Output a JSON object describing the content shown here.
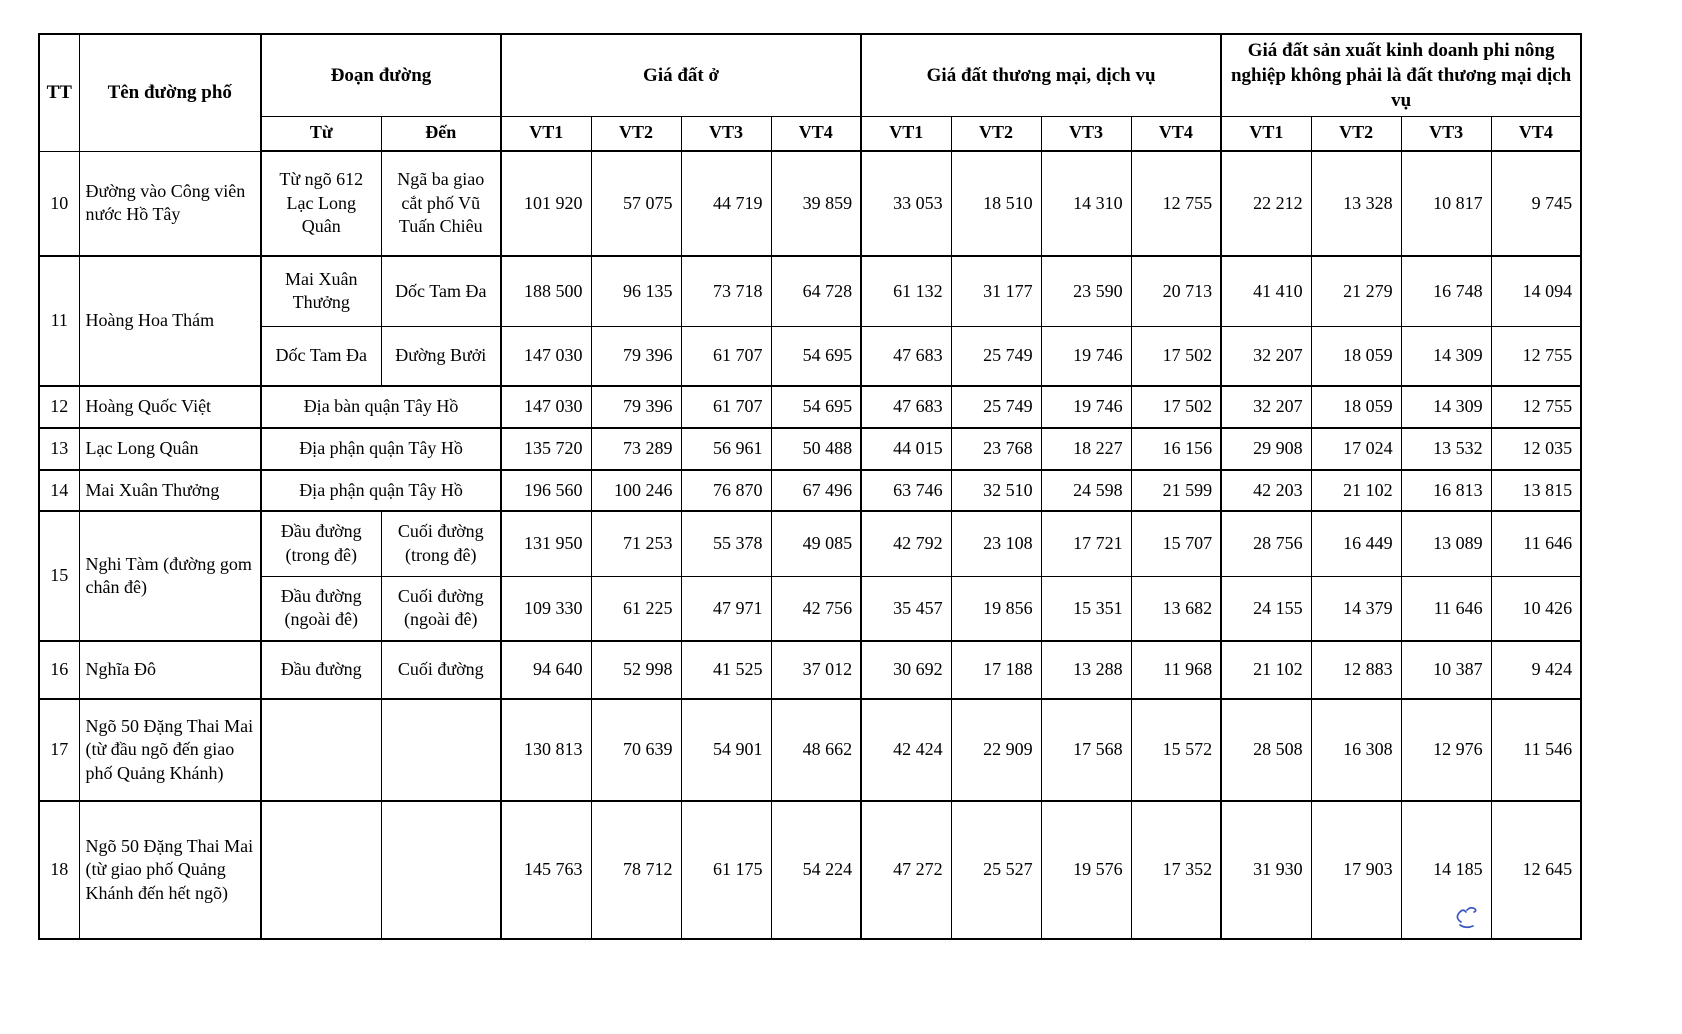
{
  "table": {
    "header": {
      "tt": "TT",
      "street": "Tên đường phố",
      "segment": "Đoạn đường",
      "from": "Từ",
      "to": "Đến",
      "residential": "Giá đất ở",
      "commercial": "Giá đất thương mại, dịch vụ",
      "non_agricultural": "Giá đất sản xuất kinh doanh phi nông nghiệp không phải là đất thương mại dịch vụ",
      "vt": [
        "VT1",
        "VT2",
        "VT3",
        "VT4"
      ]
    },
    "rows": [
      {
        "tt": "10",
        "street": "Đường vào Công viên nước Hồ Tây",
        "from": "Từ ngõ 612 Lạc Long Quân",
        "to": "Ngã ba giao cắt phố Vũ Tuấn Chiêu",
        "values": [
          "101 920",
          "57 075",
          "44 719",
          "39 859",
          "33 053",
          "18 510",
          "14 310",
          "12 755",
          "22 212",
          "13 328",
          "10 817",
          "9 745"
        ]
      },
      {
        "tt": "11",
        "street": "Hoàng Hoa Thám",
        "street_rowspan": 2,
        "from": "Mai Xuân Thưởng",
        "to": "Dốc Tam Đa",
        "values": [
          "188 500",
          "96 135",
          "73 718",
          "64 728",
          "61 132",
          "31 177",
          "23 590",
          "20 713",
          "41 410",
          "21 279",
          "16 748",
          "14 094"
        ]
      },
      {
        "from": "Dốc Tam Đa",
        "to": "Đường Bưởi",
        "values": [
          "147 030",
          "79 396",
          "61 707",
          "54 695",
          "47 683",
          "25 749",
          "19 746",
          "17 502",
          "32 207",
          "18 059",
          "14 309",
          "12 755"
        ]
      },
      {
        "tt": "12",
        "street": "Hoàng Quốc Việt",
        "segment_merged": "Địa bàn quận Tây Hồ",
        "values": [
          "147 030",
          "79 396",
          "61 707",
          "54 695",
          "47 683",
          "25 749",
          "19 746",
          "17 502",
          "32 207",
          "18 059",
          "14 309",
          "12 755"
        ]
      },
      {
        "tt": "13",
        "street": "Lạc Long Quân",
        "segment_merged": "Địa phận quận Tây Hồ",
        "values": [
          "135 720",
          "73 289",
          "56 961",
          "50 488",
          "44 015",
          "23 768",
          "18 227",
          "16 156",
          "29 908",
          "17 024",
          "13 532",
          "12 035"
        ]
      },
      {
        "tt": "14",
        "street": "Mai Xuân Thưởng",
        "segment_merged": "Địa phận quận Tây Hồ",
        "values": [
          "196 560",
          "100 246",
          "76 870",
          "67 496",
          "63 746",
          "32 510",
          "24 598",
          "21 599",
          "42 203",
          "21 102",
          "16 813",
          "13 815"
        ]
      },
      {
        "tt": "15",
        "street": "Nghi Tàm (đường gom chân đê)",
        "street_rowspan": 2,
        "from": "Đầu đường (trong đê)",
        "to": "Cuối đường (trong đê)",
        "values": [
          "131 950",
          "71 253",
          "55 378",
          "49 085",
          "42 792",
          "23 108",
          "17 721",
          "15 707",
          "28 756",
          "16 449",
          "13 089",
          "11 646"
        ]
      },
      {
        "from": "Đầu đường (ngoài đê)",
        "to": "Cuối đường (ngoài đê)",
        "values": [
          "109 330",
          "61 225",
          "47 971",
          "42 756",
          "35 457",
          "19 856",
          "15 351",
          "13 682",
          "24 155",
          "14 379",
          "11 646",
          "10 426"
        ]
      },
      {
        "tt": "16",
        "street": "Nghĩa Đô",
        "from": "Đầu đường",
        "to": "Cuối đường",
        "values": [
          "94 640",
          "52 998",
          "41 525",
          "37 012",
          "30 692",
          "17 188",
          "13 288",
          "11 968",
          "21 102",
          "12 883",
          "10 387",
          "9 424"
        ]
      },
      {
        "tt": "17",
        "street": "Ngõ 50 Đặng Thai Mai (từ đầu ngõ đến giao phố Quảng Khánh)",
        "from": "",
        "to": "",
        "values": [
          "130 813",
          "70 639",
          "54 901",
          "48 662",
          "42 424",
          "22 909",
          "17 568",
          "15 572",
          "28 508",
          "16 308",
          "12 976",
          "11 546"
        ]
      },
      {
        "tt": "18",
        "street": "Ngõ 50 Đặng Thai Mai (từ giao phố Quảng Khánh đến hết ngõ)",
        "from": "",
        "to": "",
        "values": [
          "145 763",
          "78 712",
          "61 175",
          "54 224",
          "47 272",
          "25 527",
          "19 576",
          "17 352",
          "31 930",
          "17 903",
          "14 185",
          "12 645"
        ]
      }
    ]
  },
  "annotation": {
    "ink_color": "#3b55c4"
  }
}
